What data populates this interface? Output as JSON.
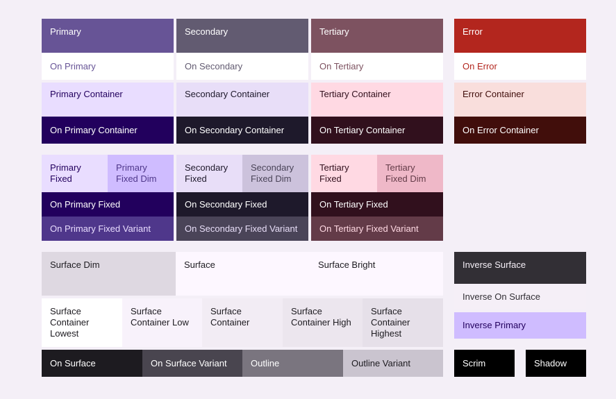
{
  "colors": {
    "primary": "#675496",
    "on_primary": "#ffffff",
    "primary_container": "#e9ddff",
    "on_primary_container": "#22005d",
    "secondary": "#625b71",
    "on_secondary": "#ffffff",
    "secondary_container": "#e8def8",
    "on_secondary_container": "#1e192b",
    "tertiary": "#7d5260",
    "on_tertiary": "#ffffff",
    "tertiary_container": "#ffd9e3",
    "on_tertiary_container": "#31101d",
    "error": "#b3261e",
    "on_error": "#ffffff",
    "error_container": "#f9dedc",
    "on_error_container": "#410e0b",
    "primary_fixed_dim": "#cfbcff",
    "secondary_fixed_dim": "#ccc2dc",
    "tertiary_fixed_dim": "#efb8c8",
    "on_primary_fixed_variant": "#4f378b",
    "on_secondary_fixed_variant": "#4a4458",
    "on_tertiary_fixed_variant": "#633b48",
    "surface_dim": "#ded8e1",
    "surface": "#fdf7ff",
    "surface_bright": "#fdf7ff",
    "surface_container_lowest": "#ffffff",
    "surface_container_low": "#f8f2fb",
    "surface_container": "#f2ecf4",
    "surface_container_high": "#ece6ee",
    "surface_container_highest": "#e6e0e9",
    "on_surface": "#1d1b20",
    "on_surface_variant": "#49454f",
    "outline": "#7a757f",
    "outline_variant": "#cac4cf",
    "inverse_surface": "#322f35",
    "inverse_on_surface": "#f5eff7",
    "inverse_primary": "#cfbcff",
    "scrim": "#000000",
    "shadow": "#000000"
  },
  "labels": {
    "primary": "Primary",
    "on_primary": "On Primary",
    "primary_container": "Primary Container",
    "on_primary_container": "On Primary Container",
    "secondary": "Secondary",
    "on_secondary": "On Secondary",
    "secondary_container": "Secondary Container",
    "on_secondary_container": "On Secondary Container",
    "tertiary": "Tertiary",
    "on_tertiary": "On Tertiary",
    "tertiary_container": "Tertiary Container",
    "on_tertiary_container": "On Tertiary Container",
    "error": "Error",
    "on_error": "On Error",
    "error_container": "Error Container",
    "on_error_container": "On Error Container",
    "primary_fixed_1": "Primary",
    "primary_fixed_2": "Fixed",
    "primary_fixed_dim_1": "Primary",
    "primary_fixed_dim_2": "Fixed Dim",
    "secondary_fixed_1": "Secondary",
    "secondary_fixed_2": "Fixed",
    "secondary_fixed_dim_1": "Secondary",
    "secondary_fixed_dim_2": "Fixed Dim",
    "tertiary_fixed_1": "Tertiary",
    "tertiary_fixed_2": "Fixed",
    "tertiary_fixed_dim_1": "Tertiary",
    "tertiary_fixed_dim_2": "Fixed Dim",
    "on_primary_fixed": "On Primary Fixed",
    "on_secondary_fixed": "On Secondary Fixed",
    "on_tertiary_fixed": "On Tertiary Fixed",
    "on_primary_fixed_variant": "On Primary Fixed Variant",
    "on_secondary_fixed_variant": "On Secondary Fixed Variant",
    "on_tertiary_fixed_variant": "On Tertiary Fixed Variant",
    "surface_dim": "Surface Dim",
    "surface": "Surface",
    "surface_bright": "Surface Bright",
    "scl_1": "Surface",
    "scl_2": "Container",
    "scl_3": "Lowest",
    "sclow_1": "Surface",
    "sclow_2": "Container Low",
    "sc_1": "Surface",
    "sc_2": "Container",
    "sch_1": "Surface",
    "sch_2": "Container High",
    "schst_1": "Surface",
    "schst_2": "Container",
    "schst_3": "Highest",
    "on_surface": "On Surface",
    "on_surface_variant": "On Surface Variant",
    "outline": "Outline",
    "outline_variant": "Outline Variant",
    "inverse_surface": "Inverse Surface",
    "inverse_on_surface": "Inverse On Surface",
    "inverse_primary": "Inverse Primary",
    "scrim": "Scrim",
    "shadow": "Shadow"
  }
}
